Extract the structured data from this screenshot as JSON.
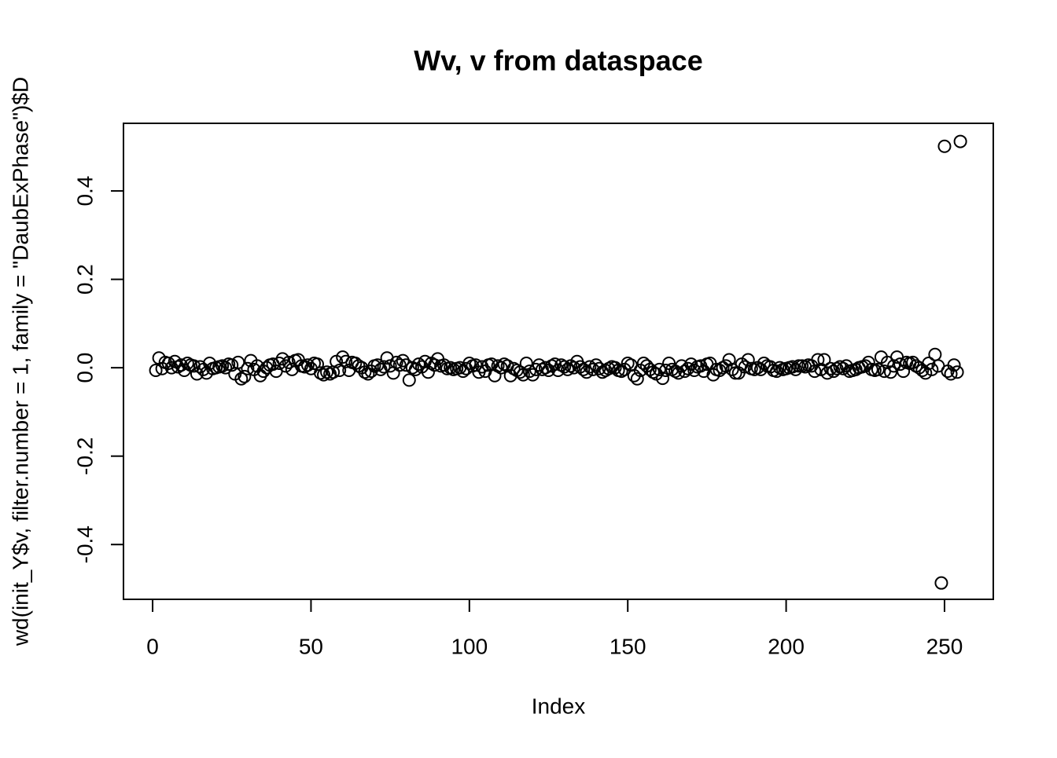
{
  "chart_data": {
    "type": "scatter",
    "title": "Wv, v from dataspace",
    "x_label": "Index",
    "y_label": "wd(init_Y$v, filter.number = 1, family = \"DaubExPhase\")$D",
    "x": [
      1,
      2,
      3,
      4,
      5,
      6,
      7,
      8,
      9,
      10,
      11,
      12,
      13,
      14,
      15,
      16,
      17,
      18,
      19,
      20,
      21,
      22,
      23,
      24,
      25,
      26,
      27,
      28,
      29,
      30,
      31,
      32,
      33,
      34,
      35,
      36,
      37,
      38,
      39,
      40,
      41,
      42,
      43,
      44,
      45,
      46,
      47,
      48,
      49,
      50,
      51,
      52,
      53,
      54,
      55,
      56,
      57,
      58,
      59,
      60,
      61,
      62,
      63,
      64,
      65,
      66,
      67,
      68,
      69,
      70,
      71,
      72,
      73,
      74,
      75,
      76,
      77,
      78,
      79,
      80,
      81,
      82,
      83,
      84,
      85,
      86,
      87,
      88,
      89,
      90,
      91,
      92,
      93,
      94,
      95,
      96,
      97,
      98,
      99,
      100,
      101,
      102,
      103,
      104,
      105,
      106,
      107,
      108,
      109,
      110,
      111,
      112,
      113,
      114,
      115,
      116,
      117,
      118,
      119,
      120,
      121,
      122,
      123,
      124,
      125,
      126,
      127,
      128,
      129,
      130,
      131,
      132,
      133,
      134,
      135,
      136,
      137,
      138,
      139,
      140,
      141,
      142,
      143,
      144,
      145,
      146,
      147,
      148,
      149,
      150,
      151,
      152,
      153,
      154,
      155,
      156,
      157,
      158,
      159,
      160,
      161,
      162,
      163,
      164,
      165,
      166,
      167,
      168,
      169,
      170,
      171,
      172,
      173,
      174,
      175,
      176,
      177,
      178,
      179,
      180,
      181,
      182,
      183,
      184,
      185,
      186,
      187,
      188,
      189,
      190,
      191,
      192,
      193,
      194,
      195,
      196,
      197,
      198,
      199,
      200,
      201,
      202,
      203,
      204,
      205,
      206,
      207,
      208,
      209,
      210,
      211,
      212,
      213,
      214,
      215,
      216,
      217,
      218,
      219,
      220,
      221,
      222,
      223,
      224,
      225,
      226,
      227,
      228,
      229,
      230,
      231,
      232,
      233,
      234,
      235,
      236,
      237,
      238,
      239,
      240,
      241,
      242,
      243,
      244,
      245,
      246,
      247,
      248,
      249,
      250,
      251,
      252,
      253,
      254,
      255
    ],
    "values": [
      -0.006,
      0.022,
      -0.002,
      0.012,
      0.01,
      0.0,
      0.014,
      0.002,
      0.006,
      -0.006,
      0.01,
      0.006,
      0.004,
      -0.014,
      0.002,
      -0.004,
      -0.012,
      0.01,
      -0.002,
      0.0,
      0.002,
      0.004,
      0.0,
      0.008,
      0.006,
      -0.014,
      0.012,
      -0.025,
      -0.02,
      -0.002,
      0.016,
      -0.004,
      0.004,
      -0.018,
      -0.008,
      0.0,
      0.006,
      0.008,
      -0.008,
      0.01,
      0.02,
      0.004,
      0.012,
      -0.004,
      0.016,
      0.018,
      0.004,
      0.002,
      0.006,
      -0.002,
      0.01,
      0.008,
      -0.012,
      -0.016,
      -0.01,
      -0.014,
      -0.01,
      0.014,
      -0.006,
      0.024,
      0.014,
      -0.006,
      0.012,
      0.01,
      0.004,
      0.0,
      -0.01,
      -0.014,
      -0.008,
      0.004,
      0.006,
      -0.004,
      0.002,
      0.022,
      0.004,
      -0.012,
      0.012,
      0.006,
      0.016,
      0.006,
      -0.028,
      0.0,
      -0.004,
      0.008,
      0.002,
      0.014,
      -0.01,
      0.01,
      0.006,
      0.02,
      0.004,
      0.006,
      -0.002,
      0.0,
      -0.004,
      -0.002,
      0.0,
      -0.008,
      -0.002,
      0.01,
      0.004,
      0.006,
      -0.01,
      0.002,
      -0.008,
      0.006,
      0.008,
      -0.018,
      0.004,
      0.0,
      0.008,
      0.004,
      -0.018,
      -0.002,
      -0.006,
      -0.01,
      -0.016,
      0.01,
      -0.008,
      -0.016,
      -0.004,
      0.006,
      -0.004,
      0.0,
      -0.006,
      0.004,
      0.008,
      -0.006,
      0.006,
      0.002,
      -0.004,
      0.004,
      0.0,
      0.014,
      0.002,
      -0.004,
      -0.01,
      0.002,
      -0.004,
      0.006,
      -0.002,
      -0.01,
      -0.006,
      -0.002,
      0.002,
      0.0,
      -0.006,
      -0.008,
      -0.004,
      0.01,
      0.006,
      -0.018,
      -0.025,
      -0.006,
      0.01,
      0.004,
      -0.004,
      -0.01,
      -0.014,
      -0.004,
      -0.024,
      -0.006,
      0.01,
      -0.004,
      -0.008,
      -0.012,
      0.004,
      -0.008,
      -0.002,
      0.008,
      -0.006,
      0.002,
      0.004,
      -0.008,
      0.008,
      0.01,
      -0.016,
      -0.004,
      -0.006,
      0.0,
      0.004,
      0.018,
      -0.004,
      -0.012,
      -0.012,
      0.008,
      0.002,
      0.018,
      -0.002,
      -0.004,
      0.0,
      -0.004,
      0.01,
      0.004,
      0.002,
      -0.006,
      -0.008,
      0.0,
      -0.004,
      -0.002,
      0.0,
      0.002,
      -0.004,
      0.004,
      0.004,
      0.002,
      0.006,
      0.004,
      -0.008,
      0.018,
      -0.004,
      0.018,
      -0.012,
      -0.002,
      -0.008,
      -0.002,
      0.002,
      -0.002,
      0.004,
      -0.008,
      -0.006,
      -0.004,
      0.0,
      0.002,
      0.004,
      0.012,
      -0.004,
      -0.006,
      -0.004,
      0.024,
      -0.008,
      0.012,
      -0.01,
      0.004,
      0.024,
      0.008,
      -0.008,
      0.012,
      0.01,
      0.012,
      0.004,
      0.0,
      -0.006,
      -0.012,
      0.01,
      -0.004,
      0.03,
      0.004,
      -0.487,
      0.501,
      -0.008,
      -0.014,
      0.006,
      -0.01,
      0.512
    ],
    "color": "#000000",
    "xlim": [
      -9.2,
      265.4
    ],
    "ylim": [
      -0.524,
      0.553
    ],
    "xticks": [
      0,
      50,
      100,
      150,
      200,
      250
    ],
    "yticks": [
      -0.4,
      -0.2,
      {
        "value": 0,
        "label": "0.0"
      },
      0.2,
      0.4
    ]
  }
}
